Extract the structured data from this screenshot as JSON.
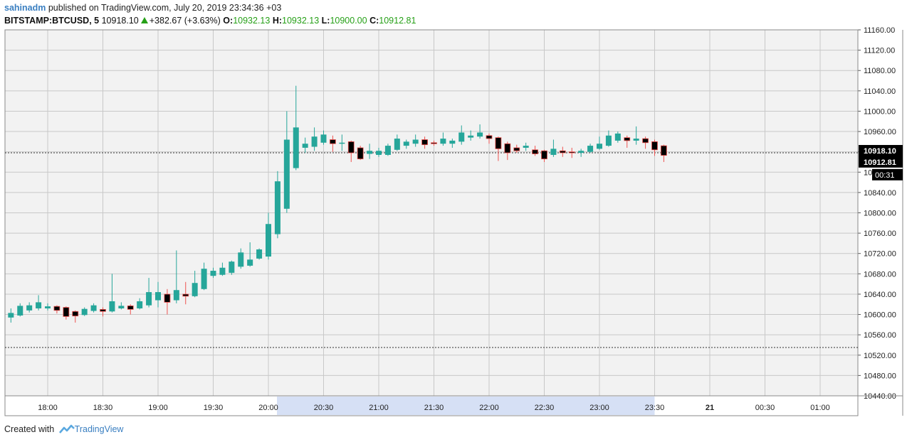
{
  "header": {
    "user": "sahinadm",
    "published_text": " published on TradingView.com, July 20, 2019 23:34:36 +03",
    "symbol": "BITSTAMP:BTCUSD, 5",
    "last": "10918.10",
    "change": "+382.67 (+3.63%)",
    "o_label": "O:",
    "o_value": "10932.13",
    "h_label": "H:",
    "h_value": "10932.13",
    "l_label": "L:",
    "l_value": "10900.00",
    "c_label": "C:",
    "c_value": "10912.81"
  },
  "footer": {
    "created_text": "Created with",
    "brand": "TradingView"
  },
  "price_tags": {
    "last": "10918.10",
    "close": "10912.81",
    "countdown": "00:31"
  },
  "colors": {
    "up": "#26a69a",
    "down": "#000000",
    "wick_down": "#ef5350",
    "plot_bg": "#f2f2f2",
    "grid": "#c8c8c8",
    "highlight": "#d6e0f5"
  },
  "chart_data": {
    "type": "candlestick",
    "interval_minutes": 5,
    "ylim": [
      10440,
      11160
    ],
    "y_ticks": [
      11160,
      11120,
      11080,
      11040,
      11000,
      10960,
      10920,
      10880,
      10840,
      10800,
      10760,
      10720,
      10680,
      10640,
      10600,
      10560,
      10520,
      10480,
      10440
    ],
    "x_ticks": [
      "18:00",
      "18:30",
      "19:00",
      "19:30",
      "20:00",
      "20:30",
      "21:00",
      "21:30",
      "22:00",
      "22:30",
      "23:00",
      "23:30",
      "21",
      "00:30",
      "01:00"
    ],
    "reference_lines": [
      10918.1,
      10535
    ],
    "highlight_range": [
      "20:00",
      "23:30"
    ],
    "candles": [
      {
        "t": "17:40",
        "o": 10594,
        "h": 10612,
        "l": 10584,
        "c": 10603
      },
      {
        "t": "17:45",
        "o": 10598,
        "h": 10622,
        "l": 10596,
        "c": 10617
      },
      {
        "t": "17:50",
        "o": 10608,
        "h": 10624,
        "l": 10604,
        "c": 10618
      },
      {
        "t": "17:55",
        "o": 10612,
        "h": 10638,
        "l": 10608,
        "c": 10624
      },
      {
        "t": "18:00",
        "o": 10612,
        "h": 10622,
        "l": 10608,
        "c": 10616
      },
      {
        "t": "18:05",
        "o": 10616,
        "h": 10618,
        "l": 10602,
        "c": 10608
      },
      {
        "t": "18:10",
        "o": 10614,
        "h": 10616,
        "l": 10590,
        "c": 10596
      },
      {
        "t": "18:15",
        "o": 10606,
        "h": 10608,
        "l": 10584,
        "c": 10597
      },
      {
        "t": "18:20",
        "o": 10599,
        "h": 10614,
        "l": 10597,
        "c": 10611
      },
      {
        "t": "18:25",
        "o": 10607,
        "h": 10622,
        "l": 10604,
        "c": 10618
      },
      {
        "t": "18:30",
        "o": 10610,
        "h": 10614,
        "l": 10596,
        "c": 10606
      },
      {
        "t": "18:35",
        "o": 10606,
        "h": 10680,
        "l": 10604,
        "c": 10626
      },
      {
        "t": "18:40",
        "o": 10612,
        "h": 10624,
        "l": 10610,
        "c": 10617
      },
      {
        "t": "18:45",
        "o": 10617,
        "h": 10620,
        "l": 10600,
        "c": 10610
      },
      {
        "t": "18:50",
        "o": 10612,
        "h": 10632,
        "l": 10610,
        "c": 10626
      },
      {
        "t": "18:55",
        "o": 10618,
        "h": 10672,
        "l": 10614,
        "c": 10644
      },
      {
        "t": "19:00",
        "o": 10628,
        "h": 10664,
        "l": 10614,
        "c": 10644
      },
      {
        "t": "19:05",
        "o": 10640,
        "h": 10650,
        "l": 10600,
        "c": 10624
      },
      {
        "t": "19:10",
        "o": 10628,
        "h": 10726,
        "l": 10622,
        "c": 10648
      },
      {
        "t": "19:15",
        "o": 10640,
        "h": 10664,
        "l": 10620,
        "c": 10636
      },
      {
        "t": "19:20",
        "o": 10636,
        "h": 10686,
        "l": 10634,
        "c": 10662
      },
      {
        "t": "19:25",
        "o": 10650,
        "h": 10702,
        "l": 10648,
        "c": 10690
      },
      {
        "t": "19:30",
        "o": 10676,
        "h": 10692,
        "l": 10672,
        "c": 10686
      },
      {
        "t": "19:35",
        "o": 10678,
        "h": 10702,
        "l": 10676,
        "c": 10692
      },
      {
        "t": "19:40",
        "o": 10682,
        "h": 10706,
        "l": 10678,
        "c": 10704
      },
      {
        "t": "19:45",
        "o": 10694,
        "h": 10730,
        "l": 10690,
        "c": 10722
      },
      {
        "t": "19:50",
        "o": 10696,
        "h": 10742,
        "l": 10694,
        "c": 10708
      },
      {
        "t": "19:55",
        "o": 10710,
        "h": 10730,
        "l": 10708,
        "c": 10728
      },
      {
        "t": "20:00",
        "o": 10714,
        "h": 10800,
        "l": 10708,
        "c": 10778
      },
      {
        "t": "20:05",
        "o": 10758,
        "h": 10882,
        "l": 10750,
        "c": 10862
      },
      {
        "t": "20:10",
        "o": 10808,
        "h": 11000,
        "l": 10800,
        "c": 10944
      },
      {
        "t": "20:15",
        "o": 10888,
        "h": 11050,
        "l": 10884,
        "c": 10968
      },
      {
        "t": "20:20",
        "o": 10928,
        "h": 10948,
        "l": 10918,
        "c": 10936
      },
      {
        "t": "20:25",
        "o": 10930,
        "h": 10968,
        "l": 10922,
        "c": 10950
      },
      {
        "t": "20:30",
        "o": 10938,
        "h": 10962,
        "l": 10934,
        "c": 10954
      },
      {
        "t": "20:35",
        "o": 10944,
        "h": 10952,
        "l": 10920,
        "c": 10936
      },
      {
        "t": "20:40",
        "o": 10938,
        "h": 10954,
        "l": 10922,
        "c": 10938
      },
      {
        "t": "20:45",
        "o": 10940,
        "h": 10942,
        "l": 10900,
        "c": 10918
      },
      {
        "t": "20:50",
        "o": 10928,
        "h": 10932,
        "l": 10904,
        "c": 10906
      },
      {
        "t": "20:55",
        "o": 10916,
        "h": 10936,
        "l": 10906,
        "c": 10922
      },
      {
        "t": "21:00",
        "o": 10914,
        "h": 10928,
        "l": 10910,
        "c": 10922
      },
      {
        "t": "21:05",
        "o": 10914,
        "h": 10936,
        "l": 10912,
        "c": 10932
      },
      {
        "t": "21:10",
        "o": 10924,
        "h": 10954,
        "l": 10922,
        "c": 10946
      },
      {
        "t": "21:15",
        "o": 10932,
        "h": 10944,
        "l": 10926,
        "c": 10940
      },
      {
        "t": "21:20",
        "o": 10936,
        "h": 10954,
        "l": 10930,
        "c": 10944
      },
      {
        "t": "21:25",
        "o": 10944,
        "h": 10950,
        "l": 10926,
        "c": 10934
      },
      {
        "t": "21:30",
        "o": 10938,
        "h": 10942,
        "l": 10932,
        "c": 10936
      },
      {
        "t": "21:35",
        "o": 10936,
        "h": 10958,
        "l": 10932,
        "c": 10946
      },
      {
        "t": "21:40",
        "o": 10936,
        "h": 10946,
        "l": 10928,
        "c": 10942
      },
      {
        "t": "21:45",
        "o": 10940,
        "h": 10972,
        "l": 10934,
        "c": 10958
      },
      {
        "t": "21:50",
        "o": 10948,
        "h": 10962,
        "l": 10942,
        "c": 10952
      },
      {
        "t": "21:55",
        "o": 10950,
        "h": 10974,
        "l": 10946,
        "c": 10958
      },
      {
        "t": "22:00",
        "o": 10952,
        "h": 10956,
        "l": 10936,
        "c": 10946
      },
      {
        "t": "22:05",
        "o": 10948,
        "h": 10950,
        "l": 10902,
        "c": 10926
      },
      {
        "t": "22:10",
        "o": 10936,
        "h": 10940,
        "l": 10904,
        "c": 10918
      },
      {
        "t": "22:15",
        "o": 10928,
        "h": 10934,
        "l": 10918,
        "c": 10922
      },
      {
        "t": "22:20",
        "o": 10928,
        "h": 10938,
        "l": 10922,
        "c": 10932
      },
      {
        "t": "22:25",
        "o": 10924,
        "h": 10932,
        "l": 10912,
        "c": 10916
      },
      {
        "t": "22:30",
        "o": 10922,
        "h": 10924,
        "l": 10900,
        "c": 10906
      },
      {
        "t": "22:35",
        "o": 10914,
        "h": 10944,
        "l": 10910,
        "c": 10926
      },
      {
        "t": "22:40",
        "o": 10922,
        "h": 10930,
        "l": 10910,
        "c": 10918
      },
      {
        "t": "22:45",
        "o": 10920,
        "h": 10928,
        "l": 10908,
        "c": 10918
      },
      {
        "t": "22:50",
        "o": 10918,
        "h": 10926,
        "l": 10910,
        "c": 10922
      },
      {
        "t": "22:55",
        "o": 10920,
        "h": 10936,
        "l": 10918,
        "c": 10932
      },
      {
        "t": "23:00",
        "o": 10926,
        "h": 10950,
        "l": 10924,
        "c": 10936
      },
      {
        "t": "23:05",
        "o": 10932,
        "h": 10962,
        "l": 10930,
        "c": 10952
      },
      {
        "t": "23:10",
        "o": 10942,
        "h": 10960,
        "l": 10938,
        "c": 10956
      },
      {
        "t": "23:15",
        "o": 10948,
        "h": 10952,
        "l": 10928,
        "c": 10942
      },
      {
        "t": "23:20",
        "o": 10942,
        "h": 10970,
        "l": 10934,
        "c": 10946
      },
      {
        "t": "23:25",
        "o": 10946,
        "h": 10950,
        "l": 10926,
        "c": 10938
      },
      {
        "t": "23:30",
        "o": 10940,
        "h": 10944,
        "l": 10912,
        "c": 10924
      },
      {
        "t": "23:35",
        "o": 10932,
        "h": 10934,
        "l": 10900,
        "c": 10913
      }
    ]
  }
}
